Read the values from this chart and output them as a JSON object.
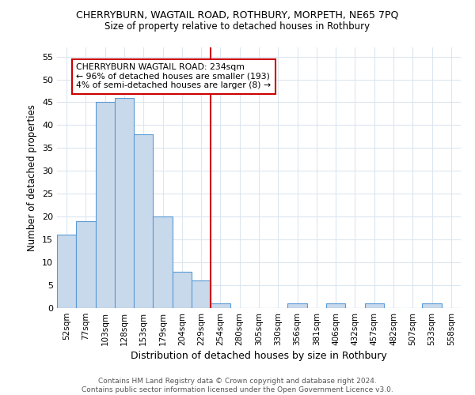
{
  "title": "CHERRYBURN, WAGTAIL ROAD, ROTHBURY, MORPETH, NE65 7PQ",
  "subtitle": "Size of property relative to detached houses in Rothbury",
  "xlabel": "Distribution of detached houses by size in Rothbury",
  "ylabel": "Number of detached properties",
  "bar_labels": [
    "52sqm",
    "77sqm",
    "103sqm",
    "128sqm",
    "153sqm",
    "179sqm",
    "204sqm",
    "229sqm",
    "254sqm",
    "280sqm",
    "305sqm",
    "330sqm",
    "356sqm",
    "381sqm",
    "406sqm",
    "432sqm",
    "457sqm",
    "482sqm",
    "507sqm",
    "533sqm",
    "558sqm"
  ],
  "bar_values": [
    16,
    19,
    45,
    46,
    38,
    20,
    8,
    6,
    1,
    0,
    0,
    0,
    1,
    0,
    1,
    0,
    1,
    0,
    0,
    1,
    0
  ],
  "bar_color": "#c9d9ec",
  "bar_edge_color": "#5b9bd5",
  "ylim": [
    0,
    57
  ],
  "yticks": [
    0,
    5,
    10,
    15,
    20,
    25,
    30,
    35,
    40,
    45,
    50,
    55
  ],
  "property_line_x": 7.5,
  "annotation_text": "CHERRYBURN WAGTAIL ROAD: 234sqm\n← 96% of detached houses are smaller (193)\n4% of semi-detached houses are larger (8) →",
  "annotation_box_color": "#ffffff",
  "annotation_box_edge": "#cc0000",
  "vline_color": "#cc0000",
  "footer": "Contains HM Land Registry data © Crown copyright and database right 2024.\nContains public sector information licensed under the Open Government Licence v3.0.",
  "background_color": "#ffffff",
  "grid_color": "#dce6f0"
}
